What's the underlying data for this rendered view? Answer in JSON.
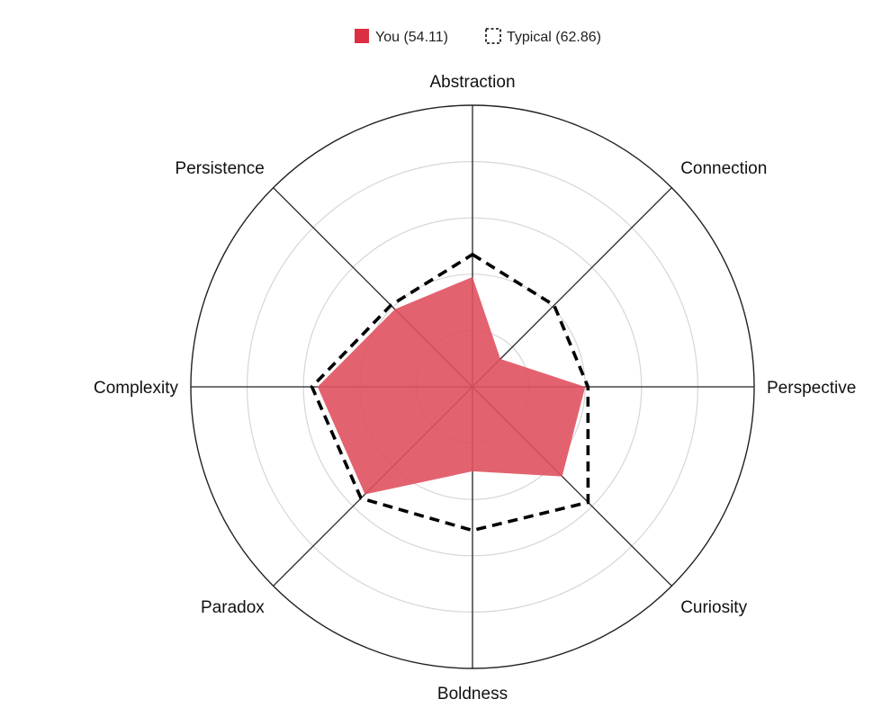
{
  "chart_data": {
    "type": "radar",
    "categories": [
      "Abstraction",
      "Connection",
      "Perspective",
      "Curiosity",
      "Boldness",
      "Paradox",
      "Complexity",
      "Persistence"
    ],
    "series": [
      {
        "name": "You (54.11)",
        "values": [
          39,
          14,
          40,
          45,
          30,
          54,
          55,
          39
        ],
        "color": "#e0515f",
        "style": "filled"
      },
      {
        "name": "Typical (62.86)",
        "values": [
          47,
          41,
          41,
          58,
          51,
          56,
          57,
          41
        ],
        "color": "#000000",
        "style": "dashed"
      }
    ],
    "rlim": [
      0,
      100
    ],
    "rings": [
      20,
      40,
      60,
      80,
      100
    ],
    "grid": true,
    "legend_position": "top-center"
  }
}
